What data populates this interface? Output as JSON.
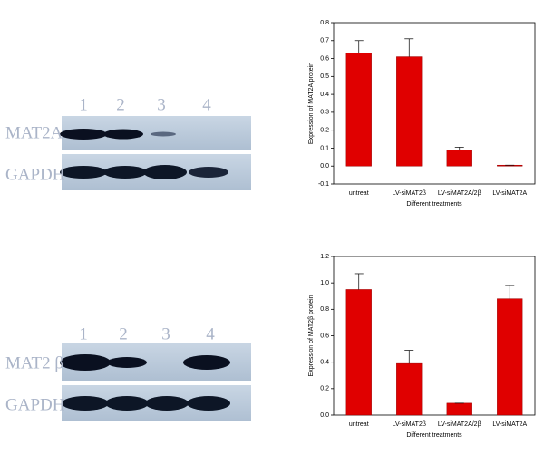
{
  "chart_data": [
    {
      "type": "bar",
      "ylabel": "Expression of MAT2A protein",
      "xlabel": "Different treatments",
      "categories": [
        "untreat",
        "LV-siMAT2β",
        "LV-siMAT2A/2β",
        "LV-siMAT2A"
      ],
      "values": [
        0.63,
        0.61,
        0.09,
        0.005
      ],
      "errors": [
        0.07,
        0.1,
        0.015,
        0
      ],
      "color": "#e00000",
      "ylim": [
        -0.1,
        0.8
      ],
      "yticks": [
        -0.1,
        {
          "value": 0,
          "label": "0.0"
        },
        0.1,
        0.2,
        0.3,
        0.4,
        0.5,
        0.6,
        0.7,
        0.8
      ]
    },
    {
      "type": "bar",
      "ylabel": "Expression of MAT2β protein",
      "xlabel": "Different treatments",
      "categories": [
        "untreat",
        "LV-siMAT2β",
        "LV-siMAT2A/2β",
        "LV-siMAT2A"
      ],
      "values": [
        0.95,
        0.39,
        0.09,
        0.88
      ],
      "errors": [
        0.12,
        0.1,
        0,
        0.1
      ],
      "color": "#e00000",
      "ylim": [
        0,
        1.2
      ],
      "yticks": [
        {
          "value": 0,
          "label": "0.0"
        },
        0.2,
        0.4,
        0.6,
        0.8,
        {
          "value": 1,
          "label": "1.0"
        },
        1.2
      ]
    }
  ],
  "blots": [
    {
      "lanes": [
        "1",
        "2",
        "3",
        "4"
      ],
      "rows": [
        "MAT2A",
        "GAPDH"
      ]
    },
    {
      "lanes": [
        "1",
        "2",
        "3",
        "4"
      ],
      "rows": [
        "MAT2 β",
        "GAPDH"
      ]
    }
  ]
}
